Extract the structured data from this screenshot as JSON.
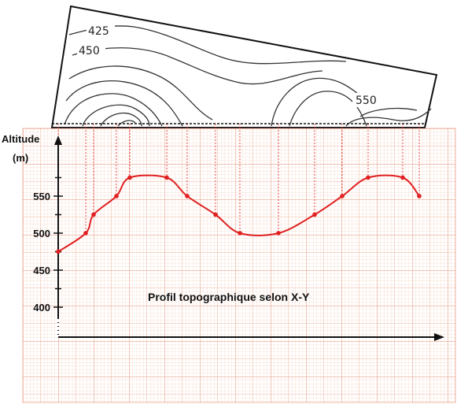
{
  "map": {
    "contour_labels": [
      "425",
      "450",
      "550"
    ]
  },
  "chart_data": {
    "type": "line",
    "title": "Profil topographique selon X-Y",
    "ylabel_line1": "Altitude",
    "ylabel_line2": "(m)",
    "ylim": [
      380,
      600
    ],
    "yticks": [
      400,
      450,
      500,
      550
    ],
    "grid": true,
    "series": [
      {
        "color": "#e02020",
        "points": [
          {
            "d": 0,
            "alt": 475
          },
          {
            "d": 35,
            "alt": 500
          },
          {
            "d": 45,
            "alt": 525
          },
          {
            "d": 74,
            "alt": 550
          },
          {
            "d": 91,
            "alt": 575
          },
          {
            "d": 138,
            "alt": 575
          },
          {
            "d": 164,
            "alt": 550
          },
          {
            "d": 200,
            "alt": 525
          },
          {
            "d": 231,
            "alt": 500
          },
          {
            "d": 280,
            "alt": 500
          },
          {
            "d": 326,
            "alt": 525
          },
          {
            "d": 361,
            "alt": 550
          },
          {
            "d": 394,
            "alt": 575
          },
          {
            "d": 438,
            "alt": 575
          },
          {
            "d": 459,
            "alt": 550
          }
        ]
      }
    ]
  }
}
